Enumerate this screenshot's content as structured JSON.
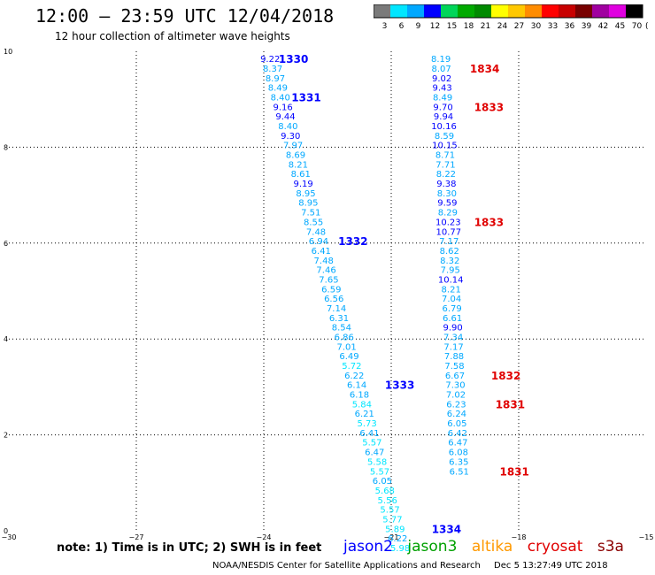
{
  "header": {
    "title": "12:00 – 23:59 UTC 12/04/2018",
    "subtitle": "12 hour collection of altimeter wave heights"
  },
  "colorbar": {
    "labels": [
      "3",
      "6",
      "9",
      "12",
      "15",
      "18",
      "21",
      "24",
      "27",
      "30",
      "33",
      "36",
      "39",
      "42",
      "45",
      "70"
    ],
    "unit": "(ft)",
    "colors": [
      "#7a7a7a",
      "#00e6ff",
      "#00a8ff",
      "#0000ff",
      "#00d65a",
      "#00aa00",
      "#008a00",
      "#ffff00",
      "#ffc800",
      "#ff8c00",
      "#ff0000",
      "#c80000",
      "#780000",
      "#a000a0",
      "#e000e0",
      "#000000"
    ]
  },
  "note": "note:  1) Time is in UTC;  2) SWH is in feet",
  "legend": [
    {
      "name": "jason2",
      "color": "#0000ff"
    },
    {
      "name": "jason3",
      "color": "#00a000"
    },
    {
      "name": "altika",
      "color": "#ff9900"
    },
    {
      "name": "cryosat",
      "color": "#e00000"
    },
    {
      "name": "s3a",
      "color": "#8b0000"
    }
  ],
  "footer": {
    "agency": "NOAA/NESDIS Center for Satellite Applications and Research",
    "timestamp": "Dec  5 13:27:49 UTC 2018"
  },
  "chart_data": {
    "type": "scatter",
    "xlim": [
      -30,
      -15
    ],
    "ylim": [
      0,
      10
    ],
    "xticks": [
      -30,
      -27,
      -24,
      -21,
      -18,
      -15
    ],
    "yticks": [
      0,
      2,
      4,
      6,
      8,
      10
    ],
    "grid": true,
    "color_scale": {
      "bounds": [
        3,
        6,
        9,
        12,
        15,
        18,
        21,
        24,
        27,
        30,
        33,
        36,
        39,
        42,
        45,
        70
      ],
      "colors": [
        "#7a7a7a",
        "#00e6ff",
        "#00a8ff",
        "#0000ff",
        "#00d65a",
        "#00aa00",
        "#008a00",
        "#ffff00",
        "#ffc800",
        "#ff8c00",
        "#ff0000",
        "#c80000",
        "#780000",
        "#a000a0",
        "#e000e0",
        "#000000"
      ]
    },
    "tracks": [
      {
        "satellite": "jason2",
        "points": [
          {
            "x": -23.85,
            "y": 9.85,
            "swh": 9.22
          },
          {
            "x": -23.79,
            "y": 9.65,
            "swh": 8.37
          },
          {
            "x": -23.73,
            "y": 9.45,
            "swh": 8.97
          },
          {
            "x": -23.67,
            "y": 9.25,
            "swh": 8.49
          },
          {
            "x": -23.61,
            "y": 9.05,
            "swh": 8.4
          },
          {
            "x": -23.55,
            "y": 8.85,
            "swh": 9.16
          },
          {
            "x": -23.49,
            "y": 8.65,
            "swh": 9.44
          },
          {
            "x": -23.43,
            "y": 8.45,
            "swh": 8.4
          },
          {
            "x": -23.37,
            "y": 8.25,
            "swh": 9.3
          },
          {
            "x": -23.31,
            "y": 8.05,
            "swh": 7.97
          },
          {
            "x": -23.25,
            "y": 7.85,
            "swh": 8.69
          },
          {
            "x": -23.19,
            "y": 7.65,
            "swh": 8.21
          },
          {
            "x": -23.13,
            "y": 7.45,
            "swh": 8.61
          },
          {
            "x": -23.07,
            "y": 7.25,
            "swh": 9.19
          },
          {
            "x": -23.01,
            "y": 7.05,
            "swh": 8.95
          },
          {
            "x": -22.95,
            "y": 6.85,
            "swh": 8.95
          },
          {
            "x": -22.89,
            "y": 6.65,
            "swh": 7.51
          },
          {
            "x": -22.83,
            "y": 6.45,
            "swh": 8.55
          },
          {
            "x": -22.77,
            "y": 6.25,
            "swh": 7.48
          },
          {
            "x": -22.71,
            "y": 6.05,
            "swh": 6.94
          },
          {
            "x": -22.65,
            "y": 5.85,
            "swh": 6.41
          },
          {
            "x": -22.59,
            "y": 5.65,
            "swh": 7.48
          },
          {
            "x": -22.53,
            "y": 5.45,
            "swh": 7.46
          },
          {
            "x": -22.47,
            "y": 5.25,
            "swh": 7.65
          },
          {
            "x": -22.41,
            "y": 5.05,
            "swh": 6.59
          },
          {
            "x": -22.35,
            "y": 4.85,
            "swh": 6.56
          },
          {
            "x": -22.29,
            "y": 4.65,
            "swh": 7.14
          },
          {
            "x": -22.23,
            "y": 4.45,
            "swh": 6.31
          },
          {
            "x": -22.17,
            "y": 4.25,
            "swh": 8.54
          },
          {
            "x": -22.11,
            "y": 4.05,
            "swh": 6.86
          },
          {
            "x": -22.05,
            "y": 3.85,
            "swh": 7.01
          },
          {
            "x": -21.99,
            "y": 3.65,
            "swh": 6.49
          },
          {
            "x": -21.93,
            "y": 3.45,
            "swh": 5.72
          },
          {
            "x": -21.87,
            "y": 3.25,
            "swh": 6.22
          },
          {
            "x": -21.81,
            "y": 3.05,
            "swh": 6.14
          },
          {
            "x": -21.75,
            "y": 2.85,
            "swh": 6.18
          },
          {
            "x": -21.69,
            "y": 2.65,
            "swh": 5.84
          },
          {
            "x": -21.63,
            "y": 2.45,
            "swh": 6.21
          },
          {
            "x": -21.57,
            "y": 2.25,
            "swh": 5.73
          },
          {
            "x": -21.51,
            "y": 2.05,
            "swh": 6.41
          },
          {
            "x": -21.45,
            "y": 1.85,
            "swh": 5.57
          },
          {
            "x": -21.39,
            "y": 1.65,
            "swh": 6.47
          },
          {
            "x": -21.33,
            "y": 1.45,
            "swh": 5.58
          },
          {
            "x": -21.27,
            "y": 1.25,
            "swh": 5.57
          },
          {
            "x": -21.21,
            "y": 1.05,
            "swh": 6.05
          },
          {
            "x": -21.15,
            "y": 0.85,
            "swh": 5.68
          },
          {
            "x": -21.09,
            "y": 0.65,
            "swh": 5.56
          },
          {
            "x": -21.03,
            "y": 0.45,
            "swh": 5.57
          },
          {
            "x": -20.97,
            "y": 0.25,
            "swh": 5.77
          },
          {
            "x": -20.91,
            "y": 0.05,
            "swh": 5.89
          },
          {
            "x": -20.85,
            "y": -0.15,
            "swh": 6.22
          },
          {
            "x": -20.79,
            "y": -0.35,
            "swh": 5.98
          }
        ],
        "time_labels": [
          {
            "text": "1330",
            "x": -23.3,
            "y": 9.85
          },
          {
            "text": "1331",
            "x": -23.0,
            "y": 9.05
          },
          {
            "text": "1332",
            "x": -21.9,
            "y": 6.05
          },
          {
            "text": "1333",
            "x": -20.8,
            "y": 3.05
          },
          {
            "text": "1334",
            "x": -19.7,
            "y": 0.05
          }
        ]
      },
      {
        "satellite": "cryosat",
        "points": [
          {
            "x": -19.83,
            "y": 9.85,
            "swh": 8.19
          },
          {
            "x": -19.82,
            "y": 9.65,
            "swh": 8.07
          },
          {
            "x": -19.81,
            "y": 9.45,
            "swh": 9.02
          },
          {
            "x": -19.8,
            "y": 9.25,
            "swh": 9.43
          },
          {
            "x": -19.79,
            "y": 9.05,
            "swh": 8.49
          },
          {
            "x": -19.78,
            "y": 8.85,
            "swh": 9.7
          },
          {
            "x": -19.77,
            "y": 8.65,
            "swh": 9.94
          },
          {
            "x": -19.76,
            "y": 8.45,
            "swh": 10.16
          },
          {
            "x": -19.75,
            "y": 8.25,
            "swh": 8.59
          },
          {
            "x": -19.74,
            "y": 8.05,
            "swh": 10.15
          },
          {
            "x": -19.73,
            "y": 7.85,
            "swh": 8.71
          },
          {
            "x": -19.72,
            "y": 7.65,
            "swh": 7.71
          },
          {
            "x": -19.71,
            "y": 7.45,
            "swh": 8.22
          },
          {
            "x": -19.7,
            "y": 7.25,
            "swh": 9.38
          },
          {
            "x": -19.69,
            "y": 7.05,
            "swh": 8.3
          },
          {
            "x": -19.68,
            "y": 6.85,
            "swh": 9.59
          },
          {
            "x": -19.67,
            "y": 6.65,
            "swh": 8.29
          },
          {
            "x": -19.66,
            "y": 6.45,
            "swh": 10.23
          },
          {
            "x": -19.65,
            "y": 6.25,
            "swh": 10.77
          },
          {
            "x": -19.64,
            "y": 6.05,
            "swh": 7.17
          },
          {
            "x": -19.63,
            "y": 5.85,
            "swh": 8.62
          },
          {
            "x": -19.62,
            "y": 5.65,
            "swh": 8.32
          },
          {
            "x": -19.61,
            "y": 5.45,
            "swh": 7.95
          },
          {
            "x": -19.6,
            "y": 5.25,
            "swh": 10.14
          },
          {
            "x": -19.59,
            "y": 5.05,
            "swh": 8.21
          },
          {
            "x": -19.58,
            "y": 4.85,
            "swh": 7.04
          },
          {
            "x": -19.57,
            "y": 4.65,
            "swh": 6.79
          },
          {
            "x": -19.56,
            "y": 4.45,
            "swh": 6.61
          },
          {
            "x": -19.55,
            "y": 4.25,
            "swh": 9.9
          },
          {
            "x": -19.54,
            "y": 4.05,
            "swh": 7.34
          },
          {
            "x": -19.53,
            "y": 3.85,
            "swh": 7.17
          },
          {
            "x": -19.52,
            "y": 3.65,
            "swh": 7.88
          },
          {
            "x": -19.51,
            "y": 3.45,
            "swh": 7.58
          },
          {
            "x": -19.5,
            "y": 3.25,
            "swh": 6.67
          },
          {
            "x": -19.49,
            "y": 3.05,
            "swh": 7.3
          },
          {
            "x": -19.48,
            "y": 2.85,
            "swh": 7.02
          },
          {
            "x": -19.47,
            "y": 2.65,
            "swh": 6.23
          },
          {
            "x": -19.46,
            "y": 2.45,
            "swh": 6.24
          },
          {
            "x": -19.45,
            "y": 2.25,
            "swh": 6.05
          },
          {
            "x": -19.44,
            "y": 2.05,
            "swh": 6.42
          },
          {
            "x": -19.43,
            "y": 1.85,
            "swh": 6.47
          },
          {
            "x": -19.42,
            "y": 1.65,
            "swh": 6.08
          },
          {
            "x": -19.41,
            "y": 1.45,
            "swh": 6.35
          },
          {
            "x": -19.4,
            "y": 1.25,
            "swh": 6.51
          }
        ],
        "time_labels": [
          {
            "text": "1834",
            "x": -18.8,
            "y": 9.65
          },
          {
            "text": "1833",
            "x": -18.7,
            "y": 8.85
          },
          {
            "text": "1833",
            "x": -18.7,
            "y": 6.45
          },
          {
            "text": "1832",
            "x": -18.3,
            "y": 3.25
          },
          {
            "text": "1831",
            "x": -18.2,
            "y": 2.65
          },
          {
            "text": "1831",
            "x": -18.1,
            "y": 1.25
          }
        ]
      }
    ]
  }
}
